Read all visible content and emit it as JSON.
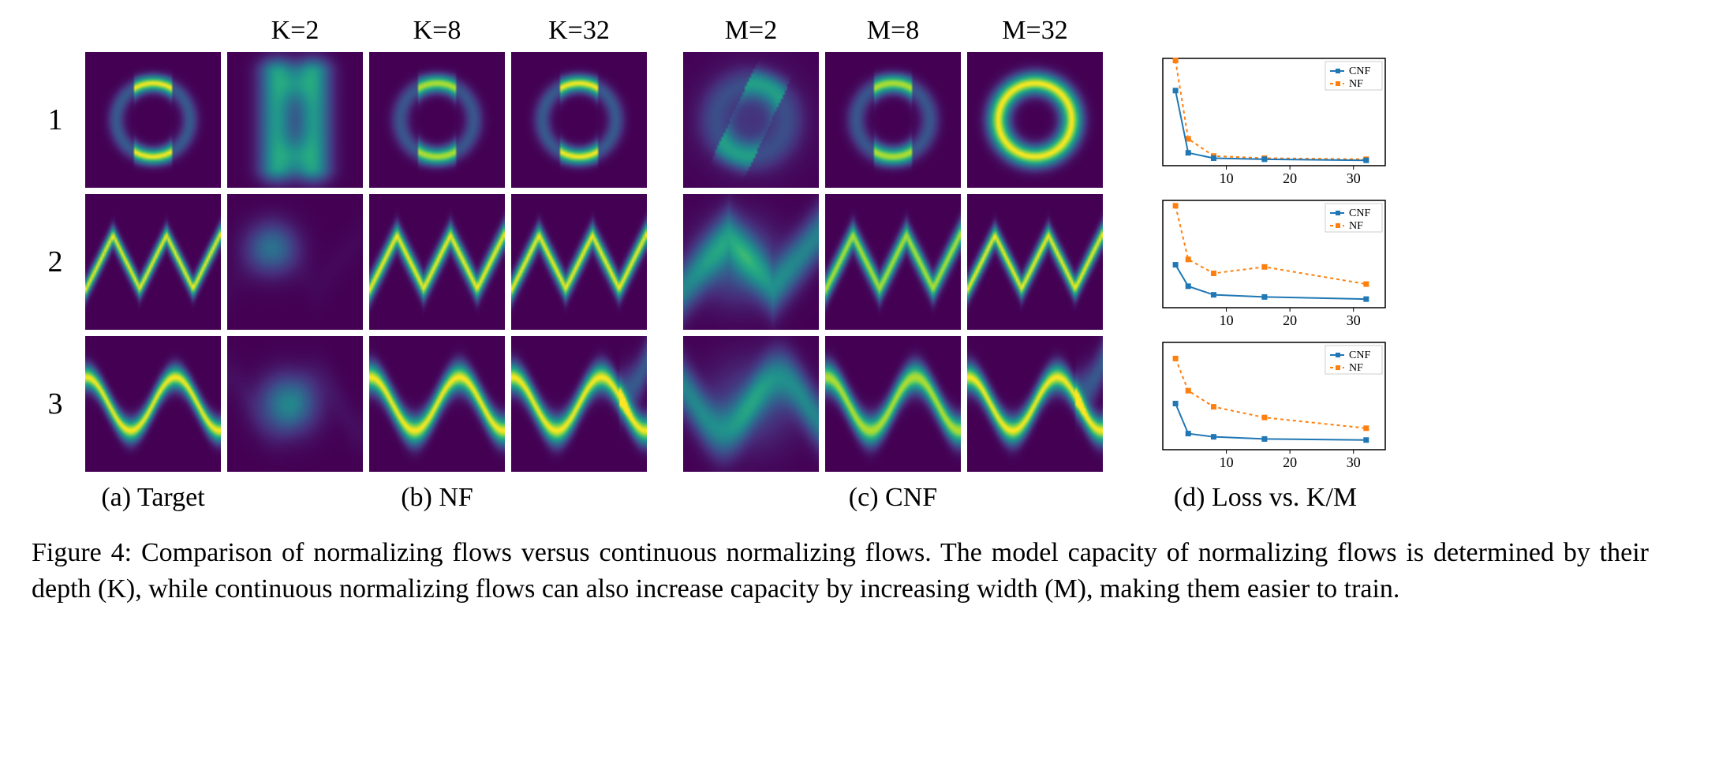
{
  "colormap": {
    "stops": [
      {
        "t": 0.0,
        "c": "#440154"
      },
      {
        "t": 0.15,
        "c": "#472c7a"
      },
      {
        "t": 0.3,
        "c": "#3b518b"
      },
      {
        "t": 0.45,
        "c": "#2c718e"
      },
      {
        "t": 0.6,
        "c": "#21908d"
      },
      {
        "t": 0.75,
        "c": "#27ad81"
      },
      {
        "t": 0.85,
        "c": "#5cc863"
      },
      {
        "t": 0.95,
        "c": "#aadc32"
      },
      {
        "t": 1.0,
        "c": "#fde725"
      }
    ]
  },
  "headers": {
    "cols": [
      "",
      "K=2",
      "K=8",
      "K=32",
      "M=2",
      "M=8",
      "M=32"
    ],
    "rows": [
      "1",
      "2",
      "3"
    ],
    "sub": [
      "(a) Target",
      "(b) NF",
      "(c) CNF",
      "(d) Loss vs. K/M"
    ]
  },
  "density_grid": {
    "size": 64,
    "rows": [
      {
        "shape": "parens",
        "variants": [
          {
            "blur": 0.0,
            "spread": 1.0,
            "rot": 0,
            "type": "target"
          },
          {
            "blur": 0.25,
            "spread": 0.6,
            "rot": 0,
            "type": "bars"
          },
          {
            "blur": 0.05,
            "spread": 0.95,
            "rot": 0,
            "type": "parens"
          },
          {
            "blur": 0.02,
            "spread": 1.0,
            "rot": 0,
            "type": "parens"
          },
          {
            "blur": 0.3,
            "spread": 0.7,
            "rot": 25,
            "type": "paren_smear"
          },
          {
            "blur": 0.08,
            "spread": 0.95,
            "rot": 0,
            "type": "parens"
          },
          {
            "blur": 0.1,
            "spread": 1.0,
            "rot": 0,
            "type": "parens_ring"
          }
        ]
      },
      {
        "shape": "zigzag5",
        "variants": [
          {
            "blur": 0.0,
            "spread": 1.0,
            "type": "target"
          },
          {
            "blur": 0.6,
            "spread": 0.4,
            "type": "blob_tl"
          },
          {
            "blur": 0.1,
            "spread": 1.0,
            "type": "zigzag5"
          },
          {
            "blur": 0.08,
            "spread": 1.0,
            "type": "zigzag5"
          },
          {
            "blur": 0.35,
            "spread": 0.7,
            "type": "zigzag_smear"
          },
          {
            "blur": 0.12,
            "spread": 0.95,
            "type": "zigzag5"
          },
          {
            "blur": 0.05,
            "spread": 1.0,
            "type": "zigzag5"
          }
        ]
      },
      {
        "shape": "sine3",
        "variants": [
          {
            "blur": 0.0,
            "spread": 1.0,
            "type": "target"
          },
          {
            "blur": 0.5,
            "spread": 0.5,
            "type": "blob_c"
          },
          {
            "blur": 0.1,
            "spread": 1.0,
            "type": "sine3"
          },
          {
            "blur": 0.1,
            "spread": 1.0,
            "type": "sine3_tail"
          },
          {
            "blur": 0.3,
            "spread": 0.7,
            "type": "sine_smear"
          },
          {
            "blur": 0.12,
            "spread": 0.95,
            "type": "sine3"
          },
          {
            "blur": 0.08,
            "spread": 1.0,
            "type": "sine3_tail"
          }
        ]
      }
    ]
  },
  "charts": {
    "xlim": [
      0,
      35
    ],
    "xticks": [
      10,
      20,
      30
    ],
    "tick_fontsize": 18,
    "legend_fontsize": 14,
    "axis_color": "#000000",
    "grid_color": "#ffffff",
    "background_color": "#ffffff",
    "border_color": "#000000",
    "series_style": {
      "CNF": {
        "color": "#1f77b4",
        "marker": "square",
        "dash": "none",
        "linewidth": 2,
        "markersize": 7
      },
      "NF": {
        "color": "#ff7f0e",
        "marker": "square",
        "dash": "4,4",
        "linewidth": 2,
        "markersize": 7
      }
    },
    "legend_labels": [
      "CNF",
      "NF"
    ],
    "rows": [
      {
        "ylim": [
          0,
          1
        ],
        "series": {
          "CNF": {
            "x": [
              2,
              4,
              8,
              16,
              32
            ],
            "y": [
              0.7,
              0.12,
              0.07,
              0.06,
              0.05
            ]
          },
          "NF": {
            "x": [
              2,
              4,
              8,
              16,
              32
            ],
            "y": [
              0.98,
              0.25,
              0.09,
              0.07,
              0.06
            ]
          }
        }
      },
      {
        "ylim": [
          0,
          1
        ],
        "series": {
          "CNF": {
            "x": [
              2,
              4,
              8,
              16,
              32
            ],
            "y": [
              0.4,
              0.2,
              0.12,
              0.1,
              0.08
            ]
          },
          "NF": {
            "x": [
              2,
              4,
              8,
              16,
              32
            ],
            "y": [
              0.95,
              0.45,
              0.32,
              0.38,
              0.22
            ]
          }
        }
      },
      {
        "ylim": [
          0,
          1
        ],
        "series": {
          "CNF": {
            "x": [
              2,
              4,
              8,
              16,
              32
            ],
            "y": [
              0.43,
              0.15,
              0.12,
              0.1,
              0.09
            ]
          },
          "NF": {
            "x": [
              2,
              4,
              8,
              16,
              32
            ],
            "y": [
              0.85,
              0.55,
              0.4,
              0.3,
              0.2
            ]
          }
        }
      }
    ]
  },
  "caption": "Figure 4: Comparison of normalizing flows versus continuous normalizing flows. The model capacity of normalizing flows is determined by their depth (K), while continuous normalizing flows can also increase capacity by increasing width (M), making them easier to train."
}
